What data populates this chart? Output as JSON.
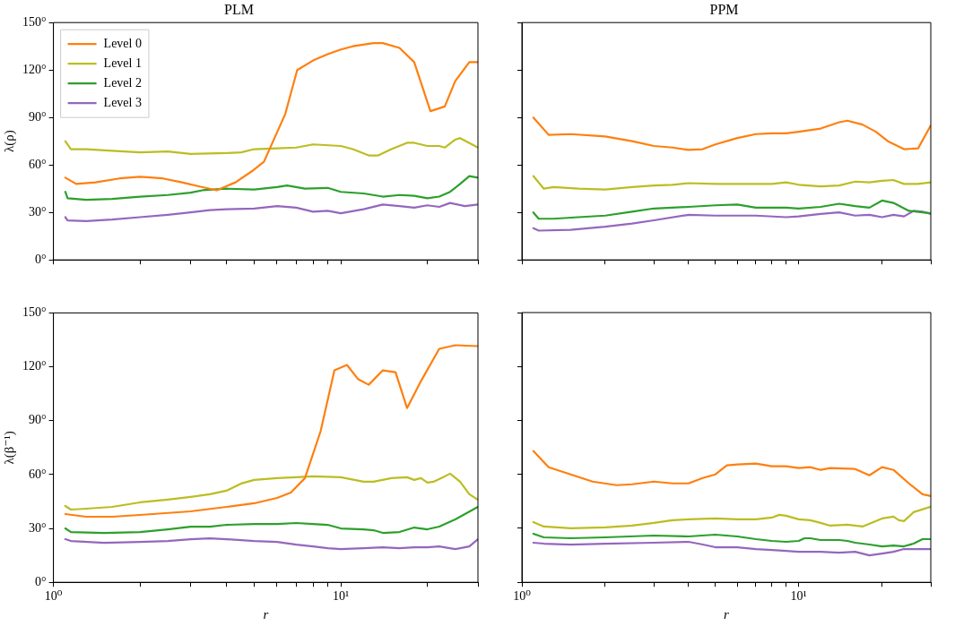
{
  "chart_data": [
    {
      "type": "line",
      "title": "PLM",
      "ylabel": "λ(ρ)",
      "legend": "top left",
      "grid": false,
      "log": "x",
      "tick_labels": "y",
      "xlim": [
        1,
        30
      ],
      "ylim": [
        0,
        150
      ],
      "xticks": [
        {
          "value": 1,
          "label": null
        },
        {
          "value": 2,
          "label": null
        },
        {
          "value": 3,
          "label": null
        },
        {
          "value": 4,
          "label": null
        },
        {
          "value": 5,
          "label": null
        },
        {
          "value": 6,
          "label": null
        },
        {
          "value": 7,
          "label": null
        },
        {
          "value": 8,
          "label": null
        },
        {
          "value": 9,
          "label": null
        },
        {
          "value": 10,
          "label": null
        },
        {
          "value": 20,
          "label": null
        },
        {
          "value": 30,
          "label": null
        }
      ],
      "yticks": [
        {
          "value": 0,
          "label": "0°"
        },
        {
          "value": 30,
          "label": "30°"
        },
        {
          "value": 60,
          "label": "60°"
        },
        {
          "value": 90,
          "label": "90°"
        },
        {
          "value": 120,
          "label": "120°"
        },
        {
          "value": 150,
          "label": "150°"
        }
      ],
      "series": [
        {
          "name": "Level 0",
          "color": "#ff7f0e",
          "x": [
            1.1,
            1.2,
            1.4,
            1.7,
            2,
            2.4,
            2.8,
            3.2,
            3.7,
            4.3,
            4.9,
            5.4,
            6.4,
            7.05,
            8,
            9,
            10,
            11,
            13,
            14,
            16,
            18,
            20.5,
            23,
            25,
            28,
            30
          ],
          "values": [
            52,
            48,
            49,
            51.5,
            52.5,
            51.5,
            49,
            46.5,
            44,
            49,
            56,
            62,
            92,
            120,
            126,
            130,
            133,
            135,
            137,
            137,
            134,
            125,
            94,
            97,
            113,
            125,
            125
          ]
        },
        {
          "name": "Level 1",
          "color": "#bcbd22",
          "x": [
            1.1,
            1.15,
            1.3,
            1.6,
            2,
            2.5,
            3,
            4,
            4.5,
            5,
            6,
            7,
            8,
            10,
            11,
            12.5,
            13.5,
            15,
            17,
            18,
            20,
            22,
            23,
            25,
            26,
            30
          ],
          "values": [
            75,
            70,
            70,
            69,
            68,
            68.5,
            67,
            67.5,
            68,
            70,
            70.5,
            71,
            73,
            72,
            70,
            66,
            66,
            70,
            74,
            74,
            72,
            72,
            71,
            76,
            77,
            71
          ]
        },
        {
          "name": "Level 2",
          "color": "#2ca02c",
          "x": [
            1.1,
            1.12,
            1.3,
            1.6,
            2,
            2.5,
            3,
            3.3,
            4,
            5,
            6,
            6.5,
            7.5,
            9,
            10,
            12,
            14,
            16,
            18,
            20,
            22,
            24,
            26,
            28,
            30
          ],
          "values": [
            43,
            39,
            38,
            38.5,
            40,
            41,
            42.5,
            44,
            45,
            44.5,
            46,
            47,
            45,
            45.5,
            43,
            42,
            40,
            41,
            40.5,
            39,
            40,
            43,
            48,
            53,
            52
          ]
        },
        {
          "name": "Level 3",
          "color": "#9467bd",
          "x": [
            1.1,
            1.12,
            1.3,
            1.6,
            2,
            2.5,
            3,
            3.5,
            4,
            5,
            6,
            7,
            8,
            9,
            10,
            12,
            14,
            16,
            18,
            20,
            22,
            24,
            27,
            30
          ],
          "values": [
            27,
            25,
            24.5,
            25.5,
            27,
            28.5,
            30,
            31.5,
            32,
            32.5,
            34,
            33,
            30.5,
            31,
            29.5,
            32,
            35,
            34,
            33,
            34.5,
            33.5,
            36,
            34,
            35
          ]
        }
      ]
    },
    {
      "type": "line",
      "title": "PPM",
      "grid": false,
      "log": "x",
      "tick_labels": false,
      "xlim": [
        1,
        30
      ],
      "ylim": [
        0,
        150
      ],
      "xticks": [
        {
          "value": 1,
          "label": null
        },
        {
          "value": 2,
          "label": null
        },
        {
          "value": 3,
          "label": null
        },
        {
          "value": 4,
          "label": null
        },
        {
          "value": 5,
          "label": null
        },
        {
          "value": 6,
          "label": null
        },
        {
          "value": 7,
          "label": null
        },
        {
          "value": 8,
          "label": null
        },
        {
          "value": 9,
          "label": null
        },
        {
          "value": 10,
          "label": null
        },
        {
          "value": 20,
          "label": null
        },
        {
          "value": 30,
          "label": null
        }
      ],
      "yticks": [
        {
          "value": 0,
          "label": null
        },
        {
          "value": 30,
          "label": null
        },
        {
          "value": 60,
          "label": null
        },
        {
          "value": 90,
          "label": null
        },
        {
          "value": 120,
          "label": null
        },
        {
          "value": 150,
          "label": null
        }
      ],
      "series": [
        {
          "color": "#ff7f0e",
          "x": [
            1.1,
            1.25,
            1.5,
            2,
            2.5,
            3,
            3.5,
            4,
            4.5,
            5,
            6,
            7,
            8,
            9,
            10,
            12,
            14,
            15,
            17,
            19,
            21,
            24,
            27,
            30
          ],
          "values": [
            90,
            79,
            79.5,
            78,
            75,
            72,
            71,
            69.5,
            70,
            73,
            77,
            79.5,
            80,
            80,
            81,
            83,
            87,
            88,
            85.5,
            81,
            75,
            70,
            70.5,
            85
          ]
        },
        {
          "color": "#bcbd22",
          "x": [
            1.1,
            1.2,
            1.3,
            1.6,
            2,
            2.5,
            3,
            3.5,
            4,
            5,
            6,
            8,
            9,
            10,
            12,
            14,
            16,
            18,
            20,
            22,
            24,
            27,
            30
          ],
          "values": [
            53,
            45,
            46,
            45,
            44.5,
            46,
            47,
            47.5,
            48.5,
            48,
            48,
            48,
            49,
            47.5,
            46.5,
            47,
            49.5,
            49,
            50,
            50.5,
            48,
            48,
            49
          ]
        },
        {
          "color": "#2ca02c",
          "x": [
            1.1,
            1.15,
            1.3,
            1.6,
            2,
            2.5,
            3,
            4,
            5,
            6,
            7,
            9,
            10,
            12,
            14,
            16,
            18,
            20,
            22,
            25,
            28,
            30
          ],
          "values": [
            30,
            26,
            26,
            27,
            28,
            30.5,
            32.5,
            33.5,
            34.5,
            35,
            33,
            33,
            32.5,
            33.5,
            35.5,
            34,
            33,
            37.5,
            36,
            31,
            30,
            29.5
          ]
        },
        {
          "color": "#9467bd",
          "x": [
            1.1,
            1.15,
            1.5,
            2,
            2.5,
            3,
            4,
            5,
            7,
            9,
            10,
            12,
            14,
            16,
            18,
            20,
            22,
            24,
            26,
            28,
            30
          ],
          "values": [
            20,
            18.5,
            19,
            21,
            23,
            25,
            28.5,
            28,
            28,
            27,
            27.5,
            29,
            30,
            28,
            28.5,
            27,
            28.5,
            27.5,
            31,
            30.5,
            29
          ]
        }
      ]
    },
    {
      "type": "line",
      "xlabel": "r",
      "ylabel": "λ(β⁻¹)",
      "grid": false,
      "log": "x",
      "xlim": [
        1,
        30
      ],
      "ylim": [
        0,
        150
      ],
      "xticks": [
        {
          "value": 1,
          "label": "10⁰"
        },
        {
          "value": 2,
          "label": null
        },
        {
          "value": 3,
          "label": null
        },
        {
          "value": 4,
          "label": null
        },
        {
          "value": 5,
          "label": null
        },
        {
          "value": 6,
          "label": null
        },
        {
          "value": 7,
          "label": null
        },
        {
          "value": 8,
          "label": null
        },
        {
          "value": 9,
          "label": null
        },
        {
          "value": 10,
          "label": "10¹"
        },
        {
          "value": 20,
          "label": null
        },
        {
          "value": 30,
          "label": null
        }
      ],
      "yticks": [
        {
          "value": 0,
          "label": "0°"
        },
        {
          "value": 30,
          "label": "30°"
        },
        {
          "value": 60,
          "label": "60°"
        },
        {
          "value": 90,
          "label": "90°"
        },
        {
          "value": 120,
          "label": "120°"
        },
        {
          "value": 150,
          "label": "150°"
        }
      ],
      "series": [
        {
          "color": "#ff7f0e",
          "x": [
            1.1,
            1.3,
            1.6,
            2,
            3,
            4,
            5,
            6,
            6.7,
            7.5,
            8.5,
            9.5,
            10.5,
            11.5,
            12.5,
            14,
            15.5,
            17,
            19,
            22,
            25,
            30
          ],
          "values": [
            38,
            36.5,
            36.5,
            37.5,
            39.5,
            42,
            44,
            47,
            50,
            58,
            84,
            118,
            121,
            113,
            110,
            118,
            117,
            97,
            112,
            130,
            132,
            131.5
          ]
        },
        {
          "color": "#bcbd22",
          "x": [
            1.1,
            1.15,
            1.3,
            1.6,
            2,
            2.5,
            3,
            3.5,
            4,
            4.5,
            5,
            6,
            7,
            8,
            10,
            12,
            13,
            15,
            17,
            18,
            19,
            20,
            21,
            23,
            24,
            26,
            28,
            30
          ],
          "values": [
            42.5,
            40.5,
            41,
            42,
            44.5,
            46,
            47.5,
            49,
            51,
            55,
            57,
            58,
            58.5,
            59,
            58.5,
            56,
            56,
            58,
            58.5,
            57,
            58,
            55.5,
            56,
            59,
            60.5,
            56,
            49,
            46
          ]
        },
        {
          "color": "#2ca02c",
          "x": [
            1.1,
            1.15,
            1.5,
            2,
            2.5,
            3,
            3.5,
            4,
            5,
            6,
            7,
            8,
            9,
            10,
            12,
            13,
            14,
            16,
            18,
            19,
            20,
            22,
            25,
            30
          ],
          "values": [
            30,
            28,
            27.5,
            28,
            29.5,
            31,
            31,
            32,
            32.5,
            32.5,
            33,
            32.5,
            32,
            30,
            29.5,
            29,
            27.5,
            28,
            30.5,
            30,
            29.5,
            31,
            35,
            42
          ]
        },
        {
          "color": "#9467bd",
          "x": [
            1.1,
            1.15,
            1.5,
            2,
            2.5,
            3,
            3.5,
            4,
            5,
            6,
            7,
            8,
            9,
            10,
            12,
            14,
            16,
            18,
            20,
            22,
            25,
            28,
            30
          ],
          "values": [
            24,
            23,
            22,
            22.5,
            23,
            24,
            24.5,
            24,
            23,
            22.5,
            21,
            20,
            19,
            18.5,
            19,
            19.5,
            19,
            19.5,
            19.5,
            20,
            18.5,
            20,
            24
          ]
        }
      ]
    },
    {
      "type": "line",
      "xlabel": "r",
      "grid": false,
      "log": "x",
      "tick_labels": "x",
      "xlim": [
        1,
        30
      ],
      "ylim": [
        0,
        150
      ],
      "xticks": [
        {
          "value": 1,
          "label": "10⁰"
        },
        {
          "value": 2,
          "label": null
        },
        {
          "value": 3,
          "label": null
        },
        {
          "value": 4,
          "label": null
        },
        {
          "value": 5,
          "label": null
        },
        {
          "value": 6,
          "label": null
        },
        {
          "value": 7,
          "label": null
        },
        {
          "value": 8,
          "label": null
        },
        {
          "value": 9,
          "label": null
        },
        {
          "value": 10,
          "label": "10¹"
        },
        {
          "value": 20,
          "label": null
        },
        {
          "value": 30,
          "label": null
        }
      ],
      "yticks": [
        {
          "value": 0,
          "label": null
        },
        {
          "value": 30,
          "label": null
        },
        {
          "value": 60,
          "label": null
        },
        {
          "value": 90,
          "label": null
        },
        {
          "value": 120,
          "label": null
        },
        {
          "value": 150,
          "label": null
        }
      ],
      "series": [
        {
          "color": "#ff7f0e",
          "x": [
            1.1,
            1.25,
            1.5,
            1.8,
            2.2,
            2.5,
            3,
            3.5,
            4,
            4.5,
            5,
            5.5,
            6,
            7,
            8,
            9,
            10,
            11,
            12,
            13,
            16,
            18,
            20,
            22,
            25,
            28,
            30
          ],
          "values": [
            73,
            64,
            60,
            56,
            54,
            54.5,
            56,
            55,
            55,
            58,
            60,
            65,
            65.5,
            66,
            64.5,
            64.5,
            63.5,
            64,
            62.5,
            63.5,
            63,
            59.5,
            64,
            62.5,
            55,
            49,
            48
          ]
        },
        {
          "color": "#bcbd22",
          "x": [
            1.1,
            1.2,
            1.5,
            2,
            2.5,
            3,
            3.5,
            4,
            5,
            6,
            7,
            8,
            8.5,
            9,
            10,
            11,
            12,
            13,
            15,
            17,
            20,
            22,
            23,
            24,
            26,
            30
          ],
          "values": [
            33.5,
            31,
            30,
            30.5,
            31.5,
            33,
            34.5,
            35,
            35.5,
            35,
            35,
            36,
            37.5,
            37,
            35,
            34.5,
            33,
            31.5,
            32,
            31,
            35.5,
            36.5,
            34.5,
            34,
            39,
            42
          ]
        },
        {
          "color": "#2ca02c",
          "x": [
            1.1,
            1.2,
            1.5,
            2,
            3,
            4,
            5,
            6,
            7,
            8,
            9,
            10,
            10.5,
            11,
            12,
            14,
            15,
            16,
            18,
            20,
            22,
            24,
            26,
            28,
            30
          ],
          "values": [
            27,
            25,
            24.5,
            25,
            26,
            25.5,
            26.5,
            25.5,
            24,
            23,
            22.5,
            23,
            24.5,
            24.5,
            23.5,
            23.5,
            23,
            22,
            21,
            20,
            20.5,
            20,
            21.5,
            24,
            24
          ]
        },
        {
          "color": "#9467bd",
          "x": [
            1.1,
            1.2,
            1.5,
            2,
            3,
            4,
            4.5,
            5,
            6,
            7,
            8,
            9,
            10,
            12,
            14,
            16,
            18,
            20,
            22,
            24,
            26,
            30
          ],
          "values": [
            22,
            21.5,
            21,
            21.5,
            22,
            22.5,
            21,
            19.5,
            19.5,
            18.5,
            18,
            17.5,
            17,
            17,
            16.5,
            17,
            15,
            16,
            17,
            18.5,
            18.5,
            18.5
          ]
        }
      ]
    }
  ]
}
